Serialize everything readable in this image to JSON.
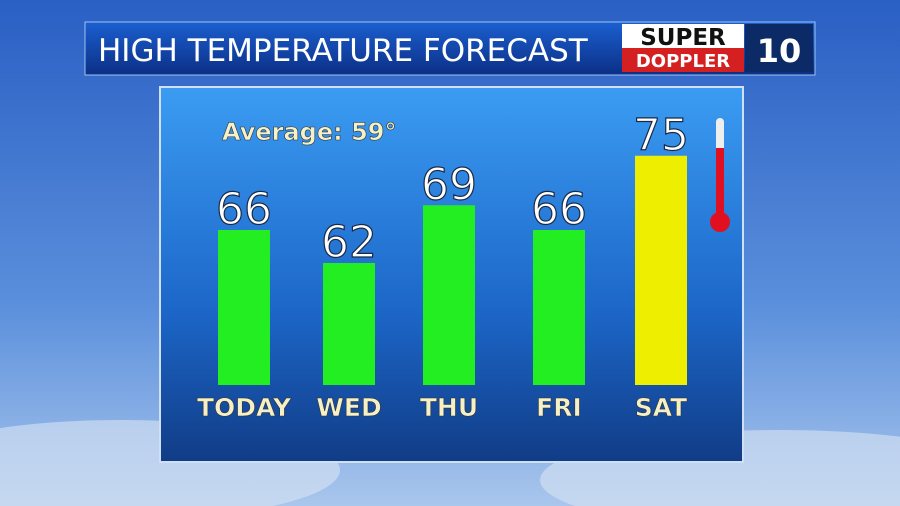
{
  "chart_data": {
    "type": "bar",
    "title": "HIGH TEMPERATURE FORECAST",
    "logo": {
      "line1": "SUPER",
      "line2": "DOPPLER",
      "number": "10"
    },
    "annotation": "Average: 59°",
    "categories": [
      "TODAY",
      "WED",
      "THU",
      "FRI",
      "SAT"
    ],
    "values": [
      66,
      62,
      69,
      66,
      75
    ],
    "colors": [
      "#22ee22",
      "#22ee22",
      "#22ee22",
      "#22ee22",
      "#eeee00"
    ]
  }
}
